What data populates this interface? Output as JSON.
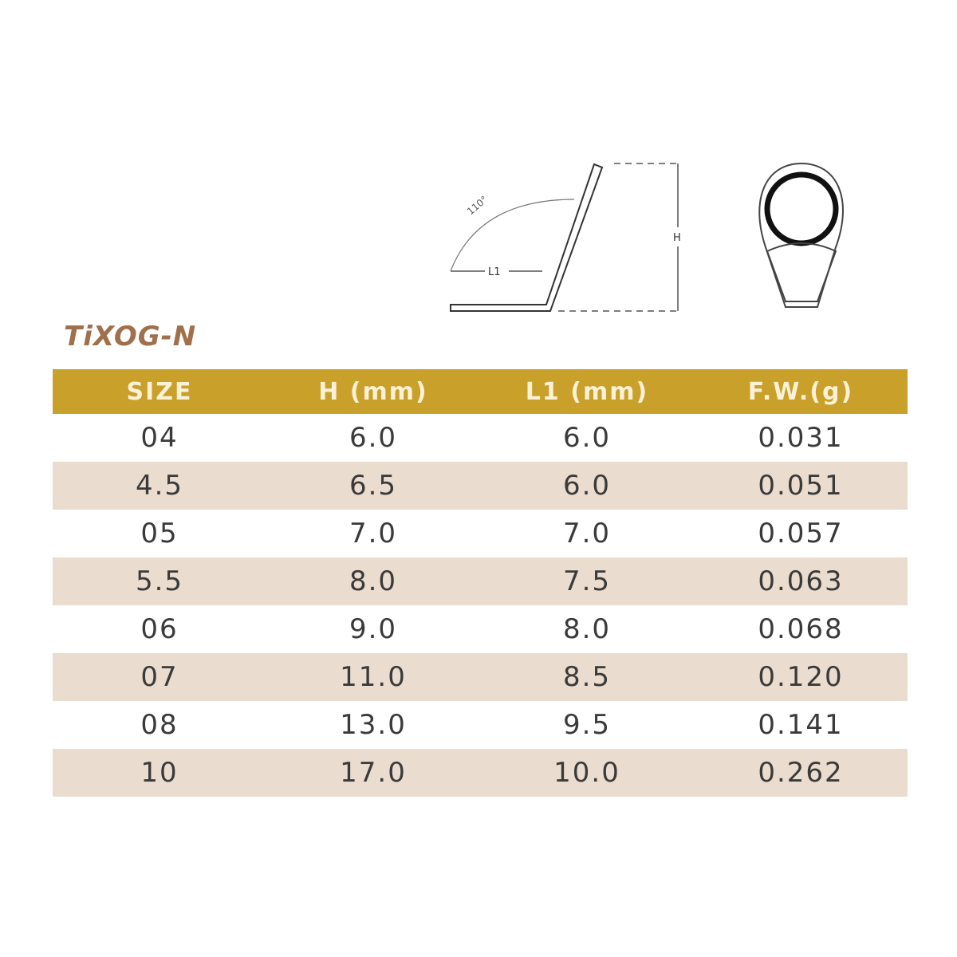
{
  "diagram": {
    "angle_label": "110°",
    "l1_label": "L1",
    "h_label": "H"
  },
  "title": "TiXOG-N",
  "colors": {
    "header": "#c9a02a",
    "shade": "#eadccf",
    "title": "#a06f4b"
  },
  "table": {
    "headers": [
      "SIZE",
      "H (mm)",
      "L1 (mm)",
      "F.W.(g)"
    ],
    "rows": [
      [
        "04",
        "6.0",
        "6.0",
        "0.031"
      ],
      [
        "4.5",
        "6.5",
        "6.0",
        "0.051"
      ],
      [
        "05",
        "7.0",
        "7.0",
        "0.057"
      ],
      [
        "5.5",
        "8.0",
        "7.5",
        "0.063"
      ],
      [
        "06",
        "9.0",
        "8.0",
        "0.068"
      ],
      [
        "07",
        "11.0",
        "8.5",
        "0.120"
      ],
      [
        "08",
        "13.0",
        "9.5",
        "0.141"
      ],
      [
        "10",
        "17.0",
        "10.0",
        "0.262"
      ]
    ]
  }
}
